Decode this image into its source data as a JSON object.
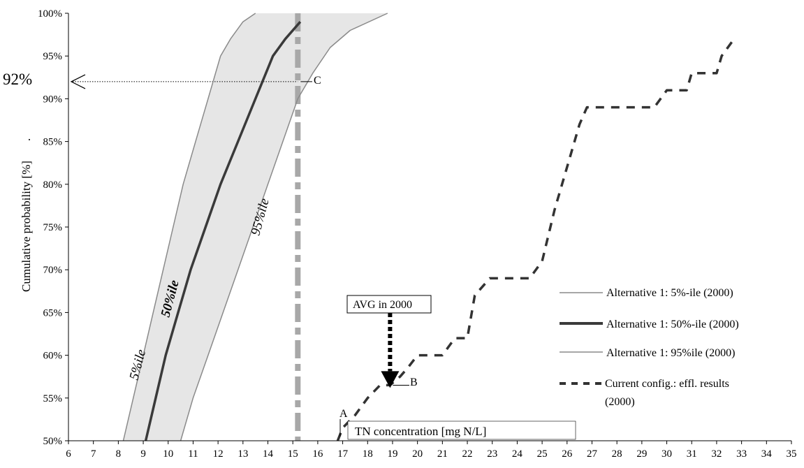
{
  "chart_data": {
    "type": "line",
    "title": "",
    "xlabel": "TN concentration [mg N/L]",
    "ylabel": "Cumulative probability [%]",
    "ylabel_suffix": ".",
    "xlim": [
      6,
      35
    ],
    "ylim": [
      50,
      100
    ],
    "x_ticks": [
      "6",
      "7",
      "8",
      "9",
      "10",
      "11",
      "12",
      "13",
      "14",
      "15",
      "16",
      "17",
      "18",
      "19",
      "20",
      "21",
      "22",
      "23",
      "24",
      "25",
      "26",
      "27",
      "28",
      "29",
      "30",
      "31",
      "32",
      "33",
      "34",
      "35"
    ],
    "y_ticks": [
      "50%",
      "55%",
      "60%",
      "65%",
      "70%",
      "75%",
      "80%",
      "85%",
      "90%",
      "95%",
      "100%"
    ],
    "series": [
      {
        "name": "Alternative 1: 5%-ile (2000)",
        "color": "#8a8a8a",
        "style": "thin-solid",
        "curve_label": "5%ile",
        "x": [
          8.2,
          8.6,
          9.0,
          9.4,
          9.8,
          10.2,
          10.6,
          11.1,
          11.6,
          12.1,
          12.5,
          13.0,
          13.5
        ],
        "y": [
          50,
          55,
          60,
          65,
          70,
          75,
          80,
          85,
          90,
          95,
          97,
          99,
          100
        ]
      },
      {
        "name": "Alternative 1: 50%-ile (2000)",
        "color": "#3a3a3a",
        "style": "thick-solid",
        "curve_label": "50%ile",
        "x": [
          9.1,
          9.5,
          9.9,
          10.4,
          10.9,
          11.5,
          12.1,
          12.8,
          13.5,
          14.2,
          14.7,
          15.3
        ],
        "y": [
          50,
          55,
          60,
          65,
          70,
          75,
          80,
          85,
          90,
          95,
          97,
          99
        ]
      },
      {
        "name": "Alternative 1: 95%ile (2000)",
        "color": "#8a8a8a",
        "style": "thin-solid",
        "curve_label": "95%ile",
        "x": [
          10.5,
          11.0,
          11.6,
          12.2,
          12.8,
          13.4,
          14.0,
          14.6,
          15.2,
          15.8,
          16.5,
          17.3,
          18.8
        ],
        "y": [
          50,
          55,
          60,
          65,
          70,
          75,
          80,
          85,
          90,
          93,
          96,
          98,
          100
        ]
      },
      {
        "name": "Current config.: effl. results (2000)",
        "color": "#333333",
        "style": "dashed",
        "x": [
          16.8,
          17.0,
          17.5,
          18.0,
          18.5,
          18.9,
          19.3,
          19.6,
          20.0,
          21.0,
          21.5,
          22.0,
          22.3,
          22.9,
          24.5,
          25.0,
          25.5,
          26.0,
          26.5,
          26.8,
          27.3,
          27.5,
          29.5,
          30.0,
          30.8,
          31.0,
          32.0,
          32.2,
          32.7
        ],
        "y": [
          50,
          51.5,
          53,
          55,
          56.5,
          56.5,
          57.5,
          58.5,
          60,
          60,
          62,
          62,
          67,
          69,
          69,
          71,
          77,
          82,
          87,
          89,
          89,
          89,
          89,
          91,
          91,
          93,
          93,
          95,
          97
        ]
      }
    ],
    "legend_position": "right",
    "legend": [
      "Alternative 1: 5%-ile (2000)",
      "Alternative 1: 50%-ile (2000)",
      "Alternative 1: 95%ile (2000)",
      "Current config.: effl. results",
      "(2000)"
    ],
    "band": {
      "fill": "#e6e6e6"
    },
    "vertical_reference": {
      "x": 15.2,
      "color": "#a8a8a8"
    },
    "horizontal_reference": {
      "y": 92,
      "label": "92%"
    },
    "annotations": {
      "point_a": {
        "label": "A",
        "x": 16.9,
        "y": 50.5
      },
      "point_b": {
        "label": "B",
        "x": 18.9,
        "y": 56.5
      },
      "point_c": {
        "label": "C",
        "x": 15.2,
        "y": 92
      },
      "avg": {
        "label": "AVG in 2000",
        "x": 18.9,
        "top_y": 65.5,
        "bottom_y": 57
      }
    },
    "grid": false
  }
}
